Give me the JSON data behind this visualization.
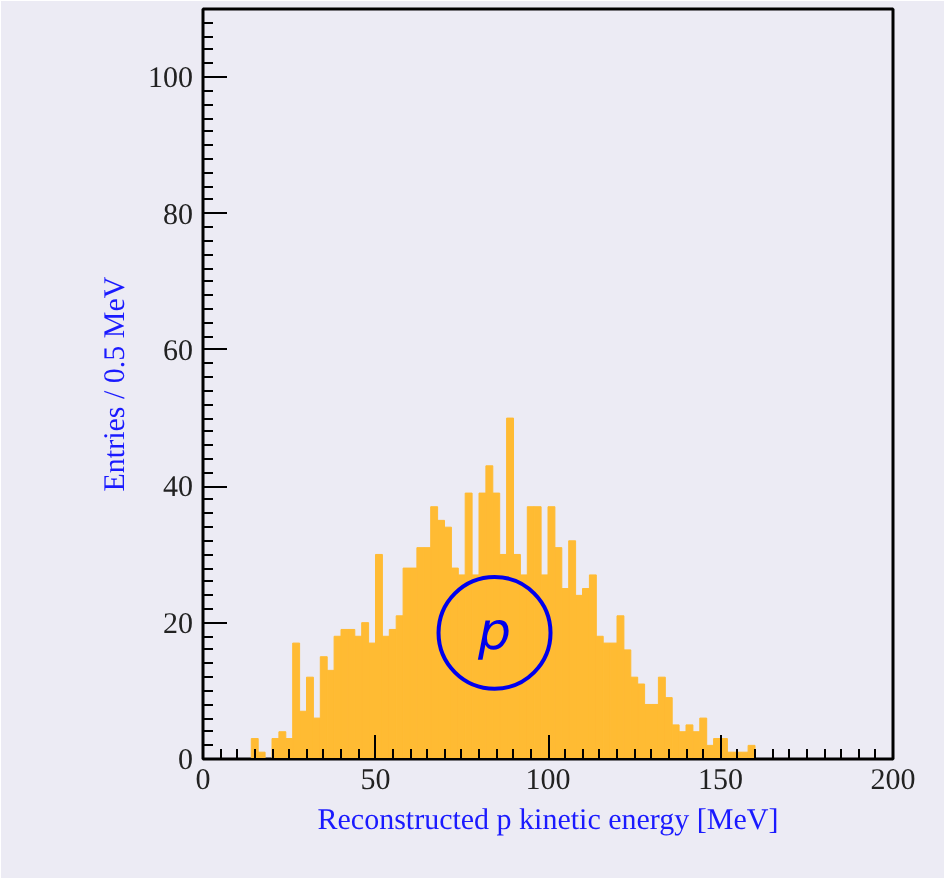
{
  "chart_data": {
    "type": "histogram",
    "xlabel": "Reconstructed p kinetic energy [MeV]",
    "ylabel": "Entries / 0.5 MeV",
    "bins": [
      14,
      16,
      18,
      20,
      22,
      24,
      26,
      28,
      30,
      32,
      34,
      36,
      38,
      40,
      42,
      44,
      46,
      48,
      50,
      52,
      54,
      56,
      58,
      60,
      62,
      64,
      66,
      68,
      70,
      72,
      74,
      76,
      78,
      80,
      82,
      84,
      86,
      88,
      90,
      92,
      94,
      96,
      98,
      100,
      102,
      104,
      106,
      108,
      110,
      112,
      114,
      116,
      118,
      120,
      122,
      124,
      126,
      128,
      130,
      132,
      134,
      136,
      138,
      140,
      142,
      144,
      146,
      148,
      150,
      152,
      154,
      156,
      158,
      160,
      162
    ],
    "values": [
      3,
      1,
      0,
      3,
      4,
      3,
      17,
      7,
      12,
      6,
      15,
      13,
      18,
      19,
      19,
      18,
      20,
      17,
      30,
      18,
      19,
      21,
      28,
      28,
      31,
      31,
      37,
      35,
      34,
      28,
      27,
      39,
      27,
      39,
      43,
      39,
      30,
      50,
      30,
      27,
      37,
      37,
      27,
      37,
      31,
      25,
      32,
      24,
      25,
      27,
      18,
      17,
      17,
      21,
      16,
      12,
      11,
      8,
      8,
      12,
      9,
      5,
      4,
      5,
      4,
      6,
      2,
      3,
      3,
      1,
      1,
      1,
      2,
      0
    ],
    "color": "#ffbb33",
    "xlim": [
      0,
      200
    ],
    "ylim": [
      0,
      110
    ],
    "xticks": [
      0,
      50,
      100,
      150,
      200
    ],
    "yticks": [
      0,
      20,
      40,
      60,
      80,
      100
    ],
    "annotations": [
      {
        "text": "p",
        "x": 84.5,
        "y": 18.5
      }
    ],
    "grid": false
  }
}
